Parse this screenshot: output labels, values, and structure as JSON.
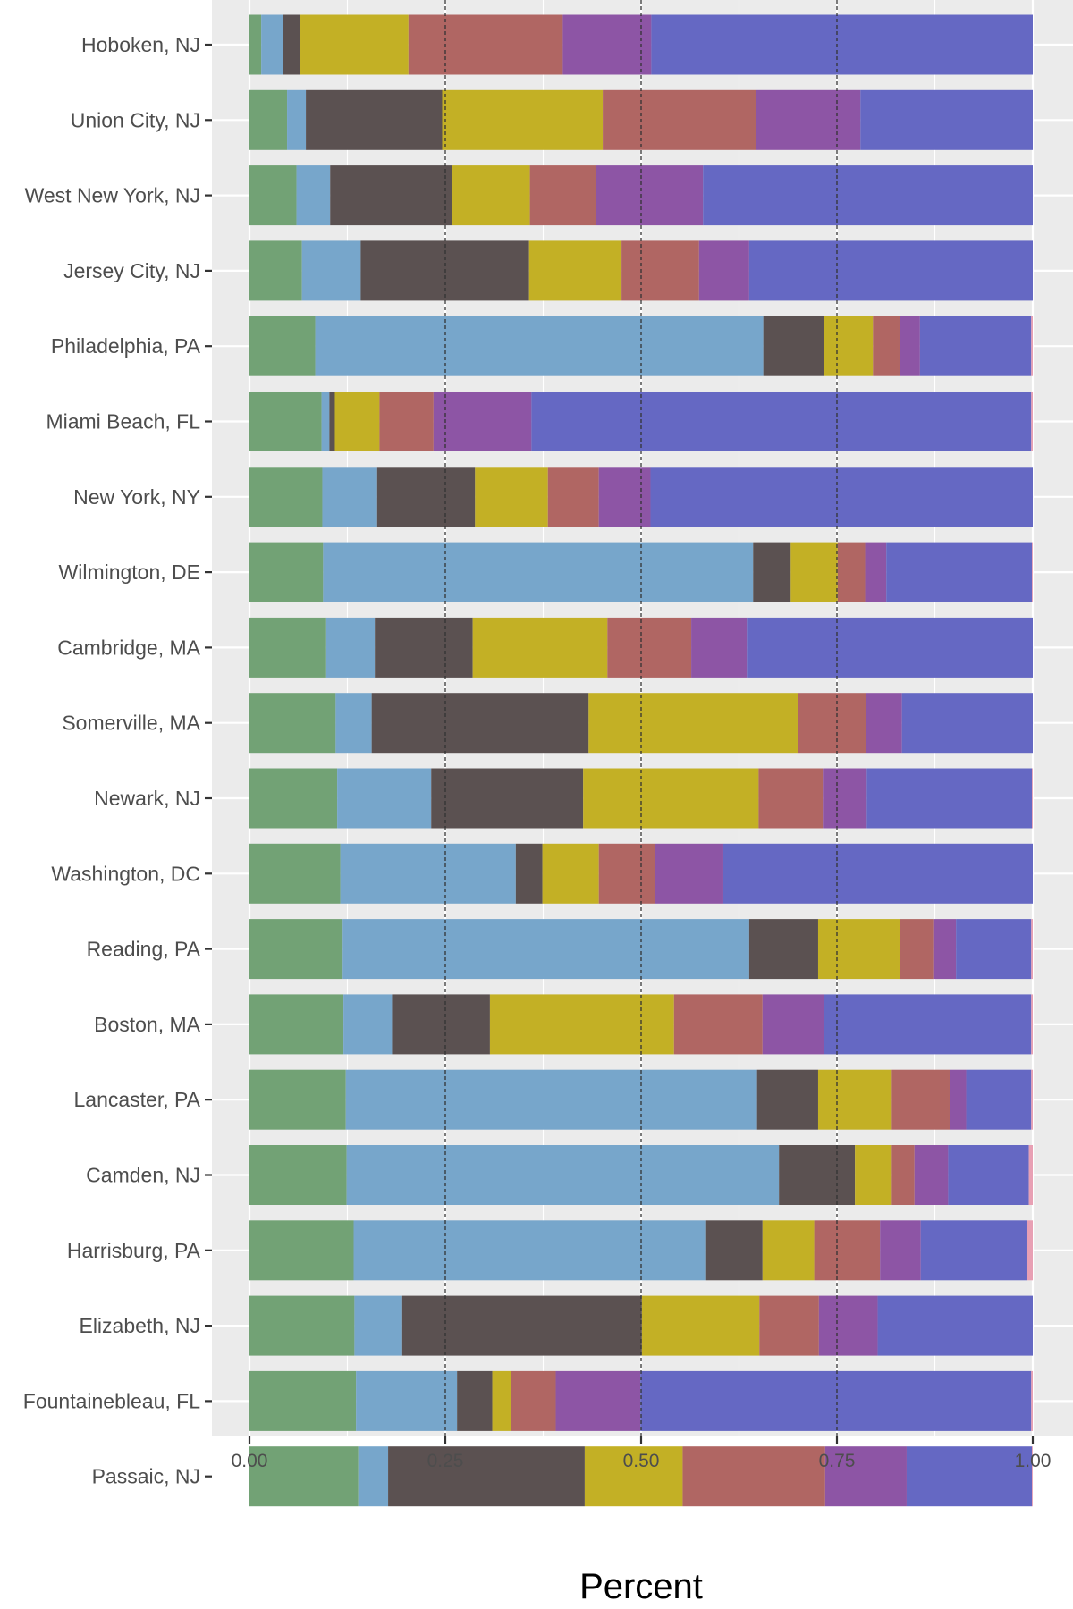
{
  "chart_data": {
    "type": "bar",
    "orientation": "horizontal",
    "stacked": true,
    "xlabel": "Percent",
    "ylabel": "",
    "xlim": [
      0,
      1
    ],
    "x_ticks": [
      0,
      0.25,
      0.5,
      0.75,
      1
    ],
    "x_tick_labels": [
      "0.00",
      "0.25",
      "0.50",
      "0.75",
      "1.00"
    ],
    "reference_lines": [
      0.25,
      0.5,
      0.75
    ],
    "grid": true,
    "legend": "none",
    "colors": [
      "#72a275",
      "#77a6cb",
      "#5b5151",
      "#c3b025",
      "#b06663",
      "#8d55a5",
      "#6568c3",
      "#e8a0b4"
    ],
    "categories": [
      "Hoboken, NJ",
      "Union City, NJ",
      "West New York, NJ",
      "Jersey City, NJ",
      "Philadelphia, PA",
      "Miami Beach, FL",
      "New York, NY",
      "Wilmington, DE",
      "Cambridge, MA",
      "Somerville, MA",
      "Newark, NJ",
      "Washington, DC",
      "Reading, PA",
      "Boston, MA",
      "Lancaster, PA",
      "Camden, NJ",
      "Harrisburg, PA",
      "Elizabeth, NJ",
      "Fountainebleau, FL",
      "Passaic, NJ"
    ],
    "series": [
      {
        "values": [
          0.015,
          0.048,
          0.06,
          0.067,
          0.084,
          0.092,
          0.093,
          0.094,
          0.098,
          0.11,
          0.112,
          0.116,
          0.119,
          0.12,
          0.123,
          0.124,
          0.133,
          0.134,
          0.136,
          0.139
        ]
      },
      {
        "values": [
          0.028,
          0.024,
          0.043,
          0.075,
          0.572,
          0.01,
          0.07,
          0.549,
          0.062,
          0.046,
          0.12,
          0.224,
          0.519,
          0.062,
          0.525,
          0.552,
          0.45,
          0.061,
          0.129,
          0.038
        ]
      },
      {
        "values": [
          0.022,
          0.174,
          0.155,
          0.215,
          0.078,
          0.007,
          0.125,
          0.048,
          0.125,
          0.277,
          0.194,
          0.034,
          0.088,
          0.125,
          0.078,
          0.097,
          0.072,
          0.306,
          0.045,
          0.251
        ]
      },
      {
        "values": [
          0.138,
          0.205,
          0.1,
          0.118,
          0.062,
          0.057,
          0.093,
          0.06,
          0.172,
          0.267,
          0.224,
          0.072,
          0.104,
          0.235,
          0.094,
          0.047,
          0.066,
          0.15,
          0.024,
          0.125
        ]
      },
      {
        "values": [
          0.197,
          0.196,
          0.084,
          0.099,
          0.034,
          0.069,
          0.065,
          0.035,
          0.107,
          0.087,
          0.082,
          0.072,
          0.043,
          0.113,
          0.074,
          0.029,
          0.084,
          0.076,
          0.057,
          0.182
        ]
      },
      {
        "values": [
          0.113,
          0.133,
          0.137,
          0.064,
          0.026,
          0.125,
          0.066,
          0.027,
          0.071,
          0.046,
          0.056,
          0.087,
          0.029,
          0.078,
          0.021,
          0.043,
          0.052,
          0.075,
          0.108,
          0.104
        ]
      },
      {
        "values": [
          0.487,
          0.22,
          0.421,
          0.362,
          0.142,
          0.638,
          0.488,
          0.186,
          0.365,
          0.167,
          0.211,
          0.395,
          0.096,
          0.265,
          0.083,
          0.103,
          0.135,
          0.198,
          0.499,
          0.16
        ]
      },
      {
        "values": [
          0,
          0,
          0,
          0,
          0.002,
          0.002,
          0,
          0.001,
          0,
          0,
          0.001,
          0,
          0.002,
          0.002,
          0.002,
          0.005,
          0.008,
          0,
          0.002,
          0.001
        ]
      }
    ]
  }
}
